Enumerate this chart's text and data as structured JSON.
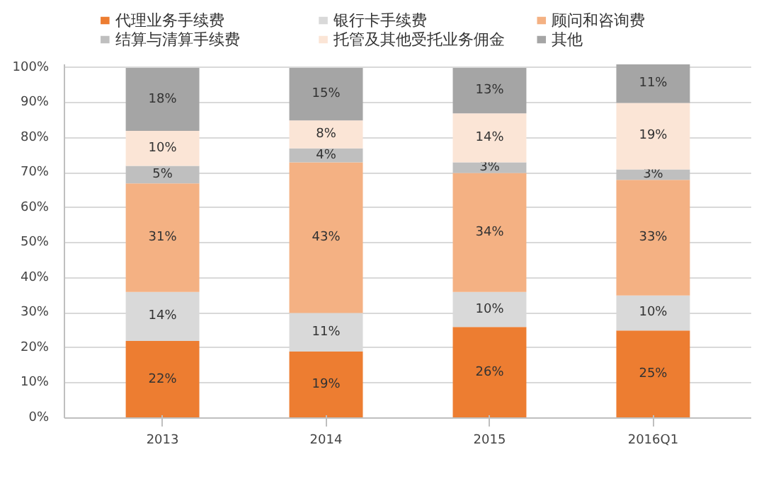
{
  "chart_data": {
    "type": "bar",
    "stacked": true,
    "categories": [
      "2013",
      "2014",
      "2015",
      "2016Q1"
    ],
    "series": [
      {
        "name": "代理业务手续费",
        "color": "#ed7d31",
        "values": [
          22,
          19,
          26,
          25
        ],
        "value_labels": [
          "22%",
          "19%",
          "26%",
          "25%"
        ]
      },
      {
        "name": "银行卡手续费",
        "color": "#d9d9d9",
        "values": [
          14,
          11,
          10,
          10
        ],
        "value_labels": [
          "14%",
          "11%",
          "10%",
          "10%"
        ]
      },
      {
        "name": "顾问和咨询费",
        "color": "#f4b183",
        "values": [
          31,
          43,
          34,
          33
        ],
        "value_labels": [
          "31%",
          "43%",
          "34%",
          "33%"
        ]
      },
      {
        "name": "结算与清算手续费",
        "color": "#bfbfbf",
        "values": [
          5,
          4,
          3,
          3
        ],
        "value_labels": [
          "5%",
          "4%",
          "3%",
          "3%"
        ]
      },
      {
        "name": "托管及其他受托业务佣金",
        "color": "#fbe5d6",
        "values": [
          10,
          8,
          14,
          19
        ],
        "value_labels": [
          "10%",
          "8%",
          "14%",
          "19%"
        ]
      },
      {
        "name": "其他",
        "color": "#a5a5a5",
        "values": [
          18,
          15,
          13,
          11
        ],
        "value_labels": [
          "18%",
          "15%",
          "13%",
          "11%"
        ]
      }
    ],
    "ylim": [
      0,
      101
    ],
    "yticks": [
      {
        "value": 0,
        "label": "0%"
      },
      {
        "value": 10,
        "label": "10%"
      },
      {
        "value": 20,
        "label": "20%"
      },
      {
        "value": 30,
        "label": "30%"
      },
      {
        "value": 40,
        "label": "40%"
      },
      {
        "value": 50,
        "label": "50%"
      },
      {
        "value": 60,
        "label": "60%"
      },
      {
        "value": 70,
        "label": "70%"
      },
      {
        "value": 80,
        "label": "80%"
      },
      {
        "value": 90,
        "label": "90%"
      },
      {
        "value": 100,
        "label": "100%"
      }
    ],
    "grid": "y",
    "legend": "top"
  }
}
